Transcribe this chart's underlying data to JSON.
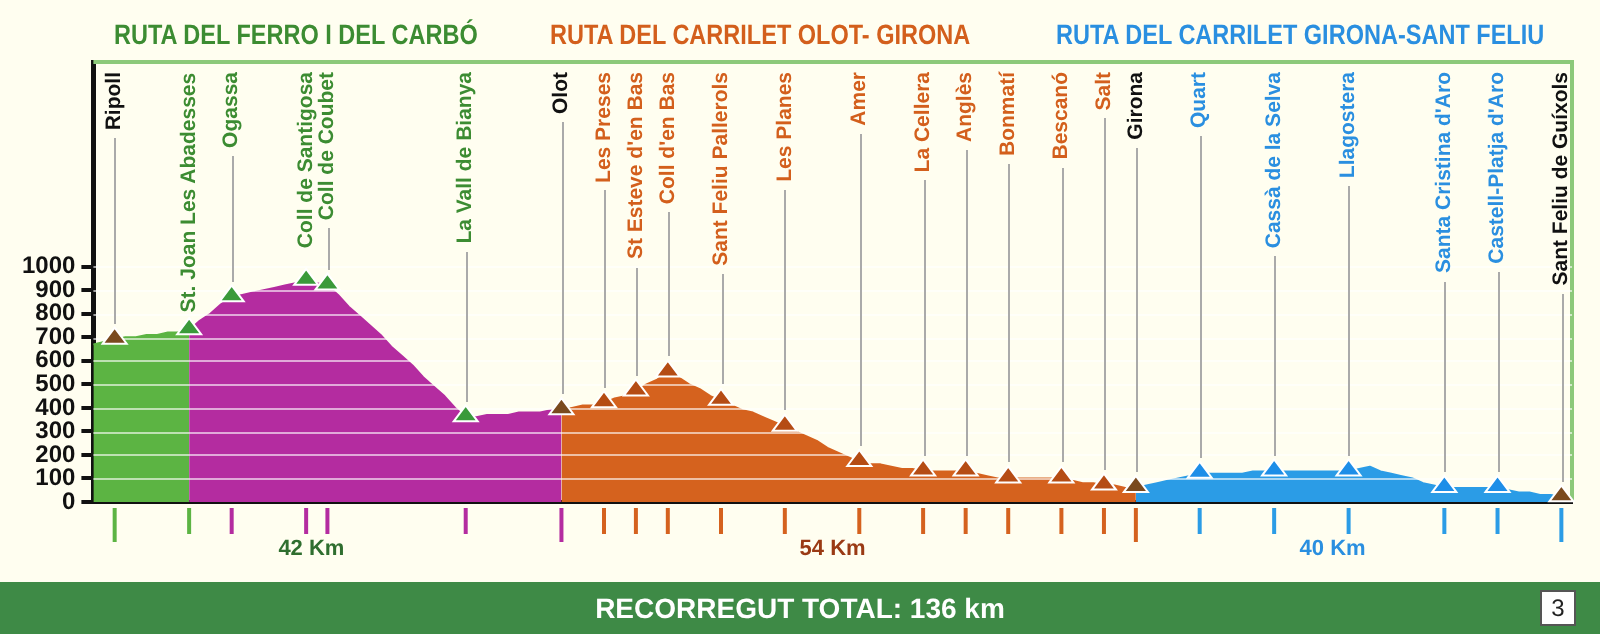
{
  "chart_data": {
    "type": "area",
    "categories": [
      null,
      null,
      "Ripoll",
      null,
      null,
      null,
      null,
      null,
      null,
      "St. Joan Les Abadesses",
      null,
      null,
      null,
      "Ogassa",
      null,
      null,
      null,
      null,
      null,
      null,
      "Coll de Santigosa",
      null,
      "Coll de Coubet",
      null,
      null,
      null,
      null,
      null,
      null,
      null,
      null,
      null,
      null,
      null,
      null,
      "La Vall de Bianya",
      null,
      null,
      null,
      null,
      null,
      null,
      null,
      null,
      "Olot",
      null,
      null,
      null,
      "Les Preses",
      null,
      null,
      "St Esteve d'en Bas",
      null,
      null,
      "Coll d'en Bas",
      null,
      null,
      null,
      null,
      "Sant Feliu Pallerols",
      null,
      null,
      null,
      null,
      null,
      "Les Planes",
      null,
      null,
      null,
      null,
      null,
      null,
      "Amer",
      null,
      null,
      null,
      null,
      null,
      "La Cellera",
      null,
      null,
      null,
      "Anglès",
      null,
      null,
      null,
      "Bonmatí",
      null,
      null,
      null,
      null,
      "Bescanó",
      null,
      null,
      null,
      "Salt",
      null,
      null,
      "Girona",
      null,
      null,
      null,
      null,
      null,
      "Quart",
      null,
      null,
      null,
      null,
      null,
      null,
      "Cassà de la Selva",
      null,
      null,
      null,
      null,
      null,
      null,
      "Llagostera",
      null,
      null,
      null,
      null,
      null,
      null,
      null,
      null,
      "Santa Cristina d'Aro",
      null,
      null,
      null,
      null,
      "Castell-Platja d'Aro",
      null,
      null,
      null,
      null,
      null,
      "Sant Feliu de Guíxols",
      null
    ],
    "ylim": [
      0,
      1870
    ],
    "yticks": [
      0,
      100,
      200,
      300,
      400,
      500,
      600,
      700,
      800,
      900,
      1000
    ],
    "grid": "y",
    "legend": false,
    "series": [
      {
        "color": "#5cb443",
        "values": [
          670,
          680,
          690,
          700,
          700,
          710,
          710,
          720,
          720,
          730,
          null,
          null,
          null,
          null,
          null,
          null,
          null,
          null,
          null,
          null,
          null,
          null,
          null,
          null,
          null,
          null,
          null,
          null,
          null,
          null,
          null,
          null,
          null,
          null,
          null,
          null,
          null,
          null,
          null,
          null,
          null,
          null,
          null,
          null,
          null,
          null,
          null,
          null,
          null,
          null,
          null,
          null,
          null,
          null,
          null,
          null,
          null,
          null,
          null,
          null,
          null,
          null,
          null,
          null,
          null,
          null,
          null,
          null,
          null,
          null,
          null,
          null,
          null,
          null,
          null,
          null,
          null,
          null,
          null,
          null,
          null,
          null,
          null,
          null,
          null,
          null,
          null,
          null,
          null,
          null,
          null,
          null,
          null,
          null,
          null,
          null,
          null,
          null,
          null,
          null,
          null,
          null,
          null,
          null,
          null,
          null,
          null,
          null,
          null,
          null,
          null,
          null,
          null,
          null,
          null,
          null,
          null,
          null,
          null,
          null,
          null,
          null,
          null,
          null,
          null,
          null,
          null,
          null,
          null,
          null,
          null,
          null,
          null,
          null,
          null,
          null,
          null,
          null,
          null,
          null
        ]
      },
      {
        "color": "#b42ca0",
        "values": [
          null,
          null,
          null,
          null,
          null,
          null,
          null,
          null,
          null,
          730,
          770,
          800,
          840,
          870,
          880,
          890,
          900,
          910,
          920,
          930,
          940,
          930,
          920,
          880,
          830,
          790,
          750,
          710,
          660,
          620,
          580,
          530,
          490,
          450,
          400,
          360,
          360,
          370,
          370,
          370,
          380,
          380,
          380,
          390,
          390,
          null,
          null,
          null,
          null,
          null,
          null,
          null,
          null,
          null,
          null,
          null,
          null,
          null,
          null,
          null,
          null,
          null,
          null,
          null,
          null,
          null,
          null,
          null,
          null,
          null,
          null,
          null,
          null,
          null,
          null,
          null,
          null,
          null,
          null,
          null,
          null,
          null,
          null,
          null,
          null,
          null,
          null,
          null,
          null,
          null,
          null,
          null,
          null,
          null,
          null,
          null,
          null,
          null,
          null,
          null,
          null,
          null,
          null,
          null,
          null,
          null,
          null,
          null,
          null,
          null,
          null,
          null,
          null,
          null,
          null,
          null,
          null,
          null,
          null,
          null,
          null,
          null,
          null,
          null,
          null,
          null,
          null,
          null,
          null,
          null,
          null,
          null,
          null,
          null,
          null,
          null,
          null,
          null,
          null,
          null
        ]
      },
      {
        "color": "#d5621e",
        "values": [
          null,
          null,
          null,
          null,
          null,
          null,
          null,
          null,
          null,
          null,
          null,
          null,
          null,
          null,
          null,
          null,
          null,
          null,
          null,
          null,
          null,
          null,
          null,
          null,
          null,
          null,
          null,
          null,
          null,
          null,
          null,
          null,
          null,
          null,
          null,
          null,
          null,
          null,
          null,
          null,
          null,
          null,
          null,
          null,
          390,
          400,
          410,
          410,
          420,
          440,
          450,
          470,
          500,
          520,
          550,
          530,
          500,
          480,
          450,
          430,
          410,
          390,
          380,
          360,
          340,
          320,
          300,
          280,
          260,
          230,
          210,
          190,
          170,
          160,
          160,
          150,
          140,
          140,
          130,
          130,
          130,
          130,
          130,
          120,
          110,
          100,
          100,
          100,
          100,
          100,
          100,
          100,
          90,
          80,
          80,
          70,
          70,
          60,
          60,
          null,
          null,
          null,
          null,
          null,
          null,
          null,
          null,
          null,
          null,
          null,
          null,
          null,
          null,
          null,
          null,
          null,
          null,
          null,
          null,
          null,
          null,
          null,
          null,
          null,
          null,
          null,
          null,
          null,
          null,
          null,
          null,
          null,
          null,
          null,
          null,
          null,
          null,
          null,
          null,
          null
        ]
      },
      {
        "color": "#2b9ce6",
        "values": [
          null,
          null,
          null,
          null,
          null,
          null,
          null,
          null,
          null,
          null,
          null,
          null,
          null,
          null,
          null,
          null,
          null,
          null,
          null,
          null,
          null,
          null,
          null,
          null,
          null,
          null,
          null,
          null,
          null,
          null,
          null,
          null,
          null,
          null,
          null,
          null,
          null,
          null,
          null,
          null,
          null,
          null,
          null,
          null,
          null,
          null,
          null,
          null,
          null,
          null,
          null,
          null,
          null,
          null,
          null,
          null,
          null,
          null,
          null,
          null,
          null,
          null,
          null,
          null,
          null,
          null,
          null,
          null,
          null,
          null,
          null,
          null,
          null,
          null,
          null,
          null,
          null,
          null,
          null,
          null,
          null,
          null,
          null,
          null,
          null,
          null,
          null,
          null,
          null,
          null,
          null,
          null,
          null,
          null,
          null,
          null,
          null,
          null,
          60,
          70,
          80,
          90,
          100,
          110,
          120,
          120,
          120,
          120,
          120,
          130,
          130,
          130,
          130,
          130,
          130,
          130,
          130,
          130,
          130,
          140,
          150,
          130,
          120,
          110,
          100,
          80,
          70,
          60,
          60,
          60,
          60,
          60,
          60,
          50,
          40,
          40,
          30,
          30,
          20,
          null
        ]
      }
    ],
    "annotations": [
      "RUTA DEL FERRO I DEL CARBÓ",
      "RUTA DEL CARRILET OLOT- GIRONA",
      "RUTA DEL CARRILET GIRONA-SANT FELIU",
      "42 Km",
      "54 Km",
      "40 Km",
      "RECORREGUT TOTAL: 136 km",
      "3"
    ]
  }
}
